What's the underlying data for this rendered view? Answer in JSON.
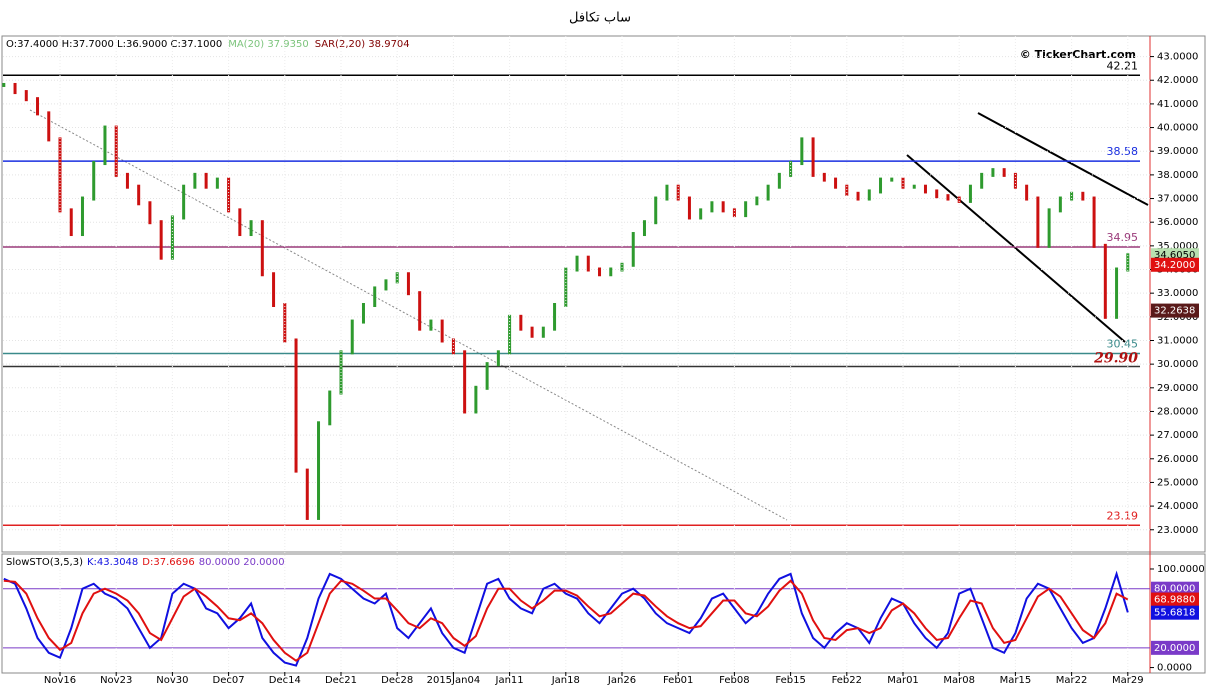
{
  "title": "ساب تكافل",
  "watermark": "© TickerChart.com",
  "chart_data": [
    {
      "type": "price",
      "header": [
        {
          "text": "O:37.4000 H:37.7000 L:36.9000 C:37.1000",
          "color": "#000000"
        },
        {
          "text": "MA(20) 37.9350",
          "color": "#7cc47c"
        },
        {
          "text": "SAR(2,20) 38.9704",
          "color": "#800000"
        }
      ],
      "values": [
        41.8,
        41.5,
        41.2,
        40.6,
        39.5,
        36.5,
        35.5,
        37.0,
        38.5,
        40.0,
        38.0,
        37.5,
        36.8,
        36.0,
        34.5,
        36.2,
        37.5,
        38.0,
        37.5,
        37.8,
        36.5,
        35.5,
        36.0,
        33.8,
        32.5,
        31.0,
        25.5,
        23.5,
        27.5,
        28.8,
        30.5,
        31.8,
        32.5,
        33.2,
        33.5,
        33.8,
        33.0,
        31.5,
        31.8,
        31.0,
        30.5,
        28.0,
        29.0,
        30.0,
        30.5,
        32.0,
        31.5,
        31.2,
        31.5,
        32.5,
        34.0,
        34.5,
        34.0,
        33.8,
        34.0,
        34.2,
        35.5,
        36.0,
        37.0,
        37.5,
        37.0,
        36.2,
        36.5,
        36.8,
        36.5,
        36.3,
        36.8,
        37.0,
        37.5,
        38.0,
        38.5,
        39.5,
        38.0,
        37.8,
        37.5,
        37.2,
        37.0,
        37.3,
        37.8,
        37.8,
        37.5,
        37.5,
        37.3,
        37.1,
        37.0,
        36.9,
        37.5,
        38.0,
        38.2,
        38.0,
        37.5,
        37.0,
        35.0,
        36.5,
        37.0,
        37.2,
        37.0,
        35.0,
        32.0,
        34.0,
        34.6
      ],
      "up_color": "#2e9a2e",
      "down_color": "#cc1010",
      "ylim": [
        22.06,
        43.87
      ],
      "yticks": [
        {
          "value": 23,
          "label": "23.0000"
        },
        {
          "value": 24,
          "label": "24.0000"
        },
        {
          "value": 25,
          "label": "25.0000"
        },
        {
          "value": 26,
          "label": "26.0000"
        },
        {
          "value": 27,
          "label": "27.0000"
        },
        {
          "value": 28,
          "label": "28.0000"
        },
        {
          "value": 29,
          "label": "29.0000"
        },
        {
          "value": 30,
          "label": "30.0000"
        },
        {
          "value": 31,
          "label": "31.0000"
        },
        {
          "value": 32,
          "label": "32.0000"
        },
        {
          "value": 33,
          "label": "33.0000"
        },
        {
          "value": 34,
          "label": "34.0000"
        },
        {
          "value": 35,
          "label": "35.0000"
        },
        {
          "value": 36,
          "label": "36.0000"
        },
        {
          "value": 37,
          "label": "37.0000"
        },
        {
          "value": 38,
          "label": "38.0000"
        },
        {
          "value": 39,
          "label": "39.0000"
        },
        {
          "value": 40,
          "label": "40.0000"
        },
        {
          "value": 41,
          "label": "41.0000"
        },
        {
          "value": 42,
          "label": "42.0000"
        },
        {
          "value": 43,
          "label": "43.0000"
        }
      ],
      "grid": true,
      "levels": [
        {
          "value": 42.21,
          "color": "#000000"
        },
        {
          "value": 38.58,
          "color": "#1a2fe0"
        },
        {
          "value": 34.95,
          "color": "#9a3a7a"
        },
        {
          "value": 30.45,
          "color": "#3a8a8a"
        },
        {
          "value": 29.9,
          "label": "29.90",
          "color": "#333333"
        },
        {
          "value": 23.19,
          "color": "#e02020"
        }
      ],
      "price_boxes": [
        {
          "value": 34.605,
          "label": "34.6050",
          "color": "#b8e0b0",
          "text_color": "#000000"
        },
        {
          "value": 34.2,
          "label": "34.2000",
          "color": "#e01010",
          "text_color": "#ffffff"
        },
        {
          "value": 32.2638,
          "label": "32.2638",
          "color": "#5a1a1a",
          "text_color": "#ffffff"
        }
      ]
    },
    {
      "type": "line",
      "title": "SlowSTO(3,5,3)",
      "header_suffix": "80.0000 20.0000",
      "categories": [
        null,
        null,
        null,
        null,
        null,
        "Nov16",
        null,
        null,
        null,
        null,
        "Nov23",
        null,
        null,
        null,
        null,
        "Nov30",
        null,
        null,
        null,
        null,
        "Dec07",
        null,
        null,
        null,
        null,
        "Dec14",
        null,
        null,
        null,
        null,
        "Dec21",
        null,
        null,
        null,
        null,
        "Dec28",
        null,
        null,
        null,
        null,
        "2015Jan04",
        null,
        null,
        null,
        null,
        "Jan11",
        null,
        null,
        null,
        null,
        "Jan18",
        null,
        null,
        null,
        null,
        "Jan26",
        null,
        null,
        null,
        null,
        "Feb01",
        null,
        null,
        null,
        null,
        "Feb08",
        null,
        null,
        null,
        null,
        "Feb15",
        null,
        null,
        null,
        null,
        "Feb22",
        null,
        null,
        null,
        null,
        "Mar01",
        null,
        null,
        null,
        null,
        "Mar08",
        null,
        null,
        null,
        null,
        "Mar15",
        null,
        null,
        null,
        null,
        "Mar22",
        null,
        null,
        null,
        null,
        "Mar29"
      ],
      "series": [
        {
          "name": "K:43.3048",
          "color": "#1010e0",
          "values": [
            90,
            85,
            60,
            30,
            15,
            10,
            40,
            80,
            85,
            75,
            70,
            60,
            40,
            20,
            30,
            75,
            85,
            80,
            60,
            55,
            40,
            50,
            65,
            30,
            15,
            5,
            2,
            30,
            70,
            95,
            90,
            80,
            70,
            65,
            75,
            40,
            30,
            45,
            60,
            35,
            20,
            15,
            50,
            85,
            90,
            70,
            60,
            55,
            80,
            85,
            75,
            70,
            55,
            45,
            60,
            75,
            80,
            70,
            55,
            45,
            40,
            35,
            50,
            70,
            75,
            60,
            45,
            55,
            75,
            90,
            95,
            55,
            30,
            20,
            35,
            45,
            40,
            25,
            50,
            70,
            65,
            45,
            30,
            20,
            35,
            75,
            80,
            50,
            20,
            15,
            35,
            70,
            85,
            80,
            60,
            40,
            25,
            30,
            60,
            95,
            56
          ]
        },
        {
          "name": "D:37.6696",
          "color": "#e01010",
          "values": [
            88,
            87,
            75,
            50,
            30,
            18,
            25,
            55,
            75,
            80,
            75,
            68,
            55,
            35,
            28,
            50,
            72,
            80,
            72,
            62,
            50,
            48,
            55,
            45,
            28,
            15,
            7,
            15,
            45,
            75,
            88,
            85,
            78,
            70,
            70,
            58,
            45,
            40,
            50,
            45,
            30,
            22,
            32,
            60,
            80,
            80,
            68,
            60,
            68,
            78,
            78,
            73,
            62,
            52,
            55,
            65,
            75,
            73,
            62,
            52,
            45,
            40,
            42,
            55,
            68,
            68,
            55,
            52,
            62,
            78,
            88,
            75,
            48,
            30,
            28,
            38,
            40,
            35,
            40,
            58,
            65,
            55,
            40,
            28,
            30,
            50,
            68,
            65,
            40,
            25,
            28,
            50,
            72,
            80,
            72,
            55,
            38,
            30,
            45,
            75,
            69
          ]
        }
      ],
      "ylim": [
        -4.5,
        115.2
      ],
      "yticks": [
        {
          "value": 100,
          "label": "100.0000"
        },
        {
          "value": 0,
          "label": "0.0000"
        }
      ],
      "levels": [
        {
          "value": 80,
          "label": "80.0000",
          "color": "#7a3ac8"
        },
        {
          "value": 20,
          "label": "20.0000",
          "color": "#7a3ac8"
        }
      ],
      "value_boxes": [
        {
          "value": 68.988,
          "label": "68.9880",
          "color": "#e01010"
        },
        {
          "value": 55.6818,
          "label": "55.6818",
          "color": "#1010e0"
        }
      ]
    }
  ]
}
